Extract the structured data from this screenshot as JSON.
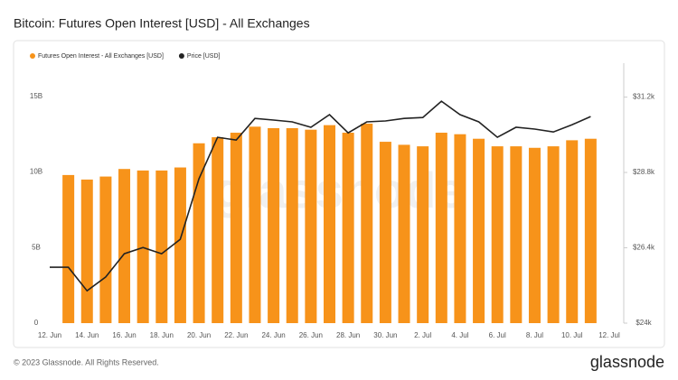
{
  "chart_data": {
    "type": "bar-line",
    "title": "Bitcoin: Futures Open Interest [USD] - All Exchanges",
    "watermark": "glassnode",
    "categories": [
      "12. Jun",
      null,
      "14. Jun",
      null,
      "16. Jun",
      null,
      "18. Jun",
      null,
      "20. Jun",
      null,
      "22. Jun",
      null,
      "24. Jun",
      null,
      "26. Jun",
      null,
      "28. Jun",
      null,
      "30. Jun",
      null,
      "2. Jul",
      null,
      "4. Jul",
      null,
      "6. Jul",
      null,
      "8. Jul",
      null,
      "10. Jul",
      null,
      "12. Jul"
    ],
    "series": [
      {
        "name": "Futures Open Interest - All Exchanges [USD]",
        "color": "#f7931a",
        "type": "bar",
        "values": [
          null,
          9800000000,
          9500000000,
          9700000000,
          10200000000,
          10100000000,
          10100000000,
          10300000000,
          11900000000,
          12300000000,
          12600000000,
          13000000000,
          12900000000,
          12900000000,
          12800000000,
          13100000000,
          12600000000,
          13200000000,
          12000000000,
          11800000000,
          11700000000,
          12600000000,
          12500000000,
          12200000000,
          11700000000,
          11700000000,
          11600000000,
          11700000000,
          12100000000,
          12200000000,
          null
        ]
      },
      {
        "name": "Price [USD]",
        "color": "#222222",
        "type": "line",
        "axis": "y2",
        "values": [
          25780,
          25780,
          25030,
          25470,
          26210,
          26410,
          26210,
          26670,
          28600,
          29920,
          29830,
          30520,
          30470,
          30410,
          30240,
          30640,
          30060,
          30410,
          30440,
          30520,
          30550,
          31070,
          30640,
          30410,
          29920,
          30240,
          30180,
          30090,
          30320,
          30580,
          null
        ]
      }
    ],
    "ylim": [
      0,
      17200000000
    ],
    "yticks": [
      0,
      {
        "value": 5000000000,
        "label": "5B"
      },
      {
        "value": 10000000000,
        "label": "10B"
      },
      {
        "value": 15000000000,
        "label": "15B"
      }
    ],
    "y2lim": [
      24000,
      32280
    ],
    "y2ticks": [
      {
        "value": 24000,
        "label": "$24k"
      },
      {
        "value": 26400,
        "label": "$26.4k"
      },
      {
        "value": 28800,
        "label": "$28.8k"
      },
      {
        "value": 31200,
        "label": "$31.2k"
      }
    ],
    "grid": false
  },
  "footer": {
    "copyright": "© 2023 Glassnode. All Rights Reserved.",
    "logo": "glassnode"
  }
}
